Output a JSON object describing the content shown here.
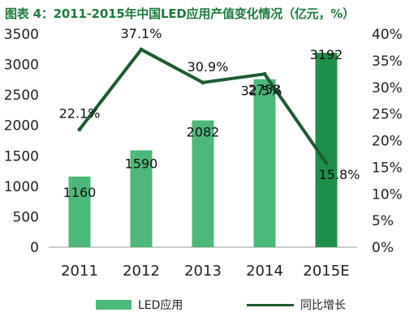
{
  "title": "图表 4：2011-2015年中国LED应用产值变化情况（亿元，%）",
  "colors": {
    "bar": "#4cb879",
    "bar_highlight": "#1e8f4a",
    "line": "#1d5c31",
    "title": "#1f7a3e",
    "axis_text": "#222222"
  },
  "legend": {
    "bar_label": "LED应用",
    "line_label": "同比增长"
  },
  "chart_data": {
    "type": "bar",
    "title": "图表 4：2011-2015年中国LED应用产值变化情况（亿元，%）",
    "categories": [
      "2011",
      "2012",
      "2013",
      "2014",
      "2015E"
    ],
    "series": [
      {
        "name": "LED应用",
        "type": "bar",
        "axis": "left",
        "values": [
          1160,
          1590,
          2082,
          2758,
          3192
        ]
      },
      {
        "name": "同比增长",
        "type": "line",
        "axis": "right",
        "values": [
          22.1,
          37.1,
          30.9,
          32.5,
          15.8
        ]
      }
    ],
    "bar_labels": [
      "1160",
      "1590",
      "2082",
      "2758",
      "3192"
    ],
    "line_labels": [
      "22.1%",
      "37.1%",
      "30.9%",
      "32.5%",
      "15.8%"
    ],
    "ylim_left": [
      0,
      3500
    ],
    "ylim_right": [
      0,
      40
    ],
    "left_ticks": [
      "0",
      "500",
      "1000",
      "1500",
      "2000",
      "2500",
      "3000",
      "3500"
    ],
    "right_ticks": [
      "0%",
      "5%",
      "10%",
      "15%",
      "20%",
      "25%",
      "30%",
      "35%",
      "40%"
    ],
    "grid": false,
    "legend_position": "bottom"
  }
}
